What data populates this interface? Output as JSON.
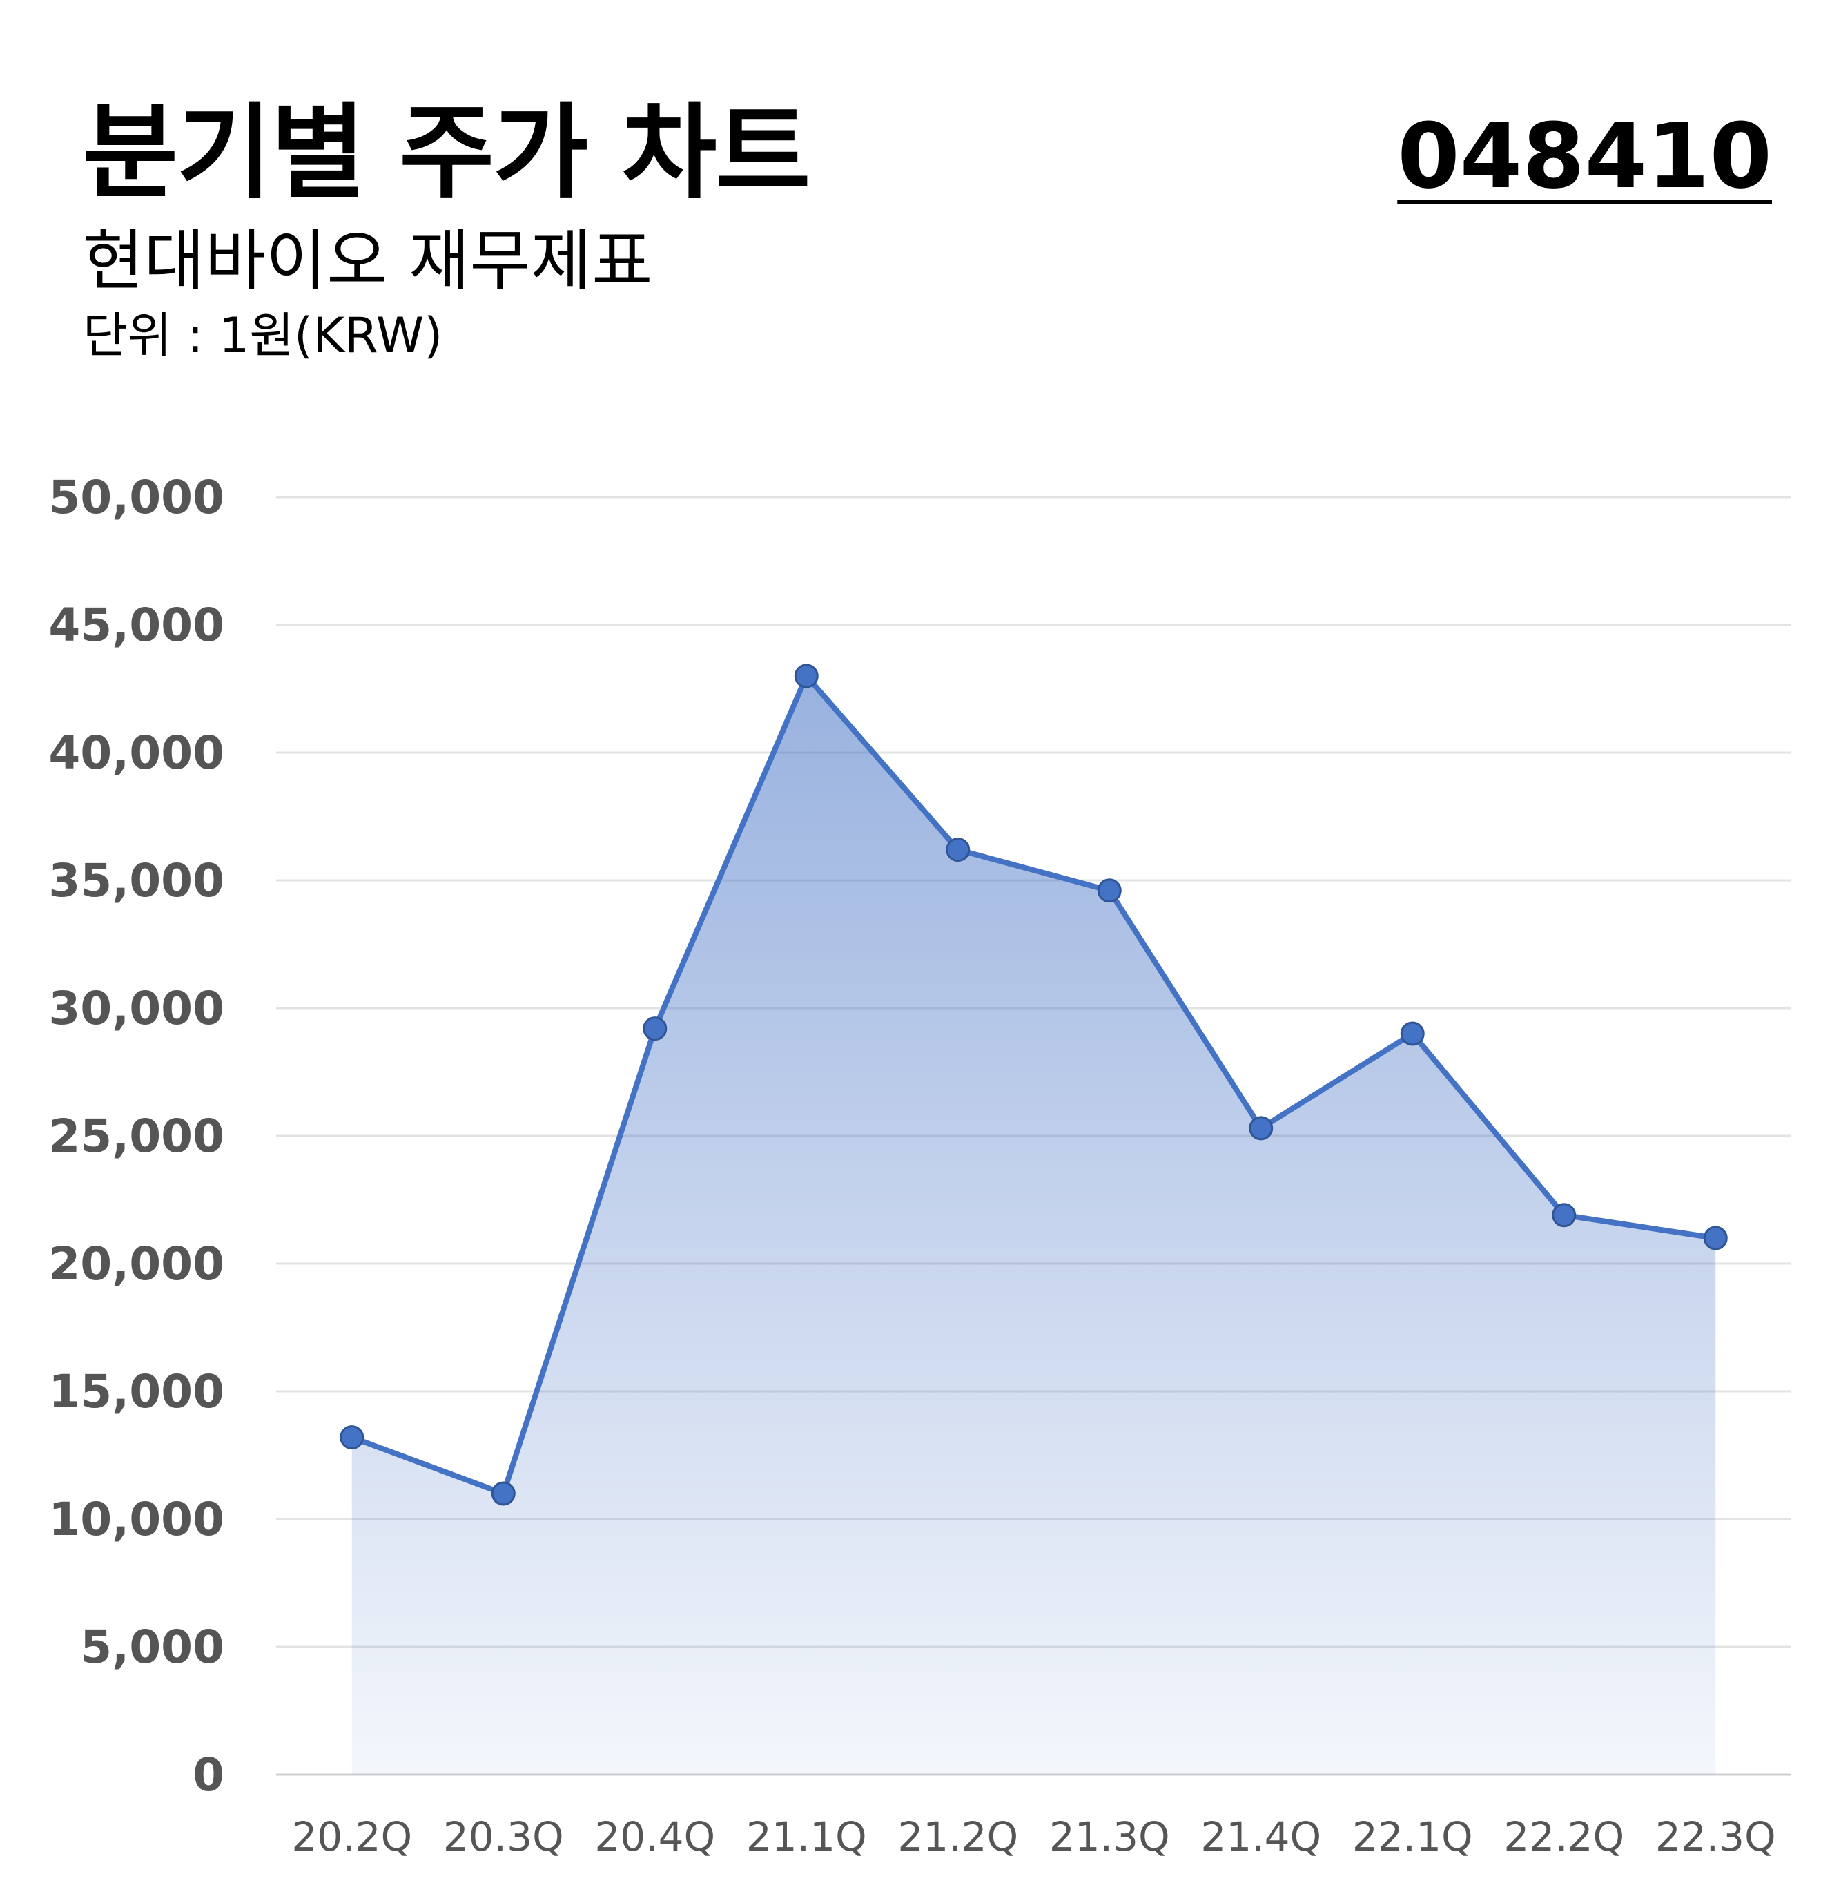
{
  "header": {
    "title": "분기별 주가 차트",
    "subtitle": "현대바이오 재무제표",
    "unit": "단위 : 1원(KRW)",
    "code": "048410"
  },
  "colors": {
    "line": "#4472C4",
    "fill": "#4472C4",
    "grid": "#e3e3e3",
    "tick": "#555555"
  },
  "chart_data": {
    "type": "area",
    "categories": [
      "20.2Q",
      "20.3Q",
      "20.4Q",
      "21.1Q",
      "21.2Q",
      "21.3Q",
      "21.4Q",
      "22.1Q",
      "22.2Q",
      "22.3Q"
    ],
    "series": [
      {
        "values": [
          13200,
          11000,
          29200,
          43000,
          36200,
          34600,
          25300,
          29000,
          21900,
          21000
        ]
      }
    ],
    "yticks": [
      "0",
      "5,000",
      "10,000",
      "15,000",
      "20,000",
      "25,000",
      "30,000",
      "35,000",
      "40,000",
      "45,000",
      "50,000"
    ],
    "ylim": [
      0,
      50000
    ],
    "grid": true,
    "markers": true
  }
}
